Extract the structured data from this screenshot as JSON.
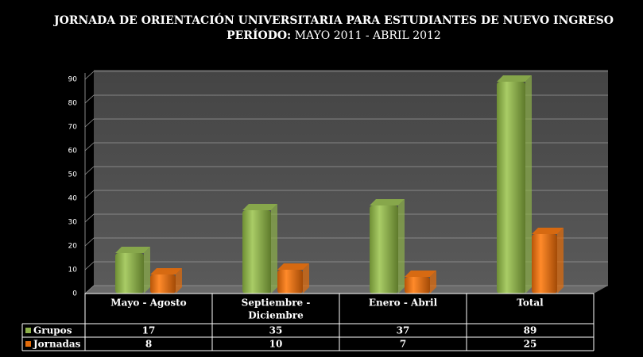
{
  "chart_data": {
    "type": "bar",
    "title": "JORNADA DE ORIENTACIÓN UNIVERSITARIA PARA ESTUDIANTES DE NUEVO INGRESO",
    "subtitle_label": "PERÍODO:",
    "subtitle": "MAYO 2011 - ABRIL 2012",
    "categories": [
      [
        "Mayo - Agosto"
      ],
      [
        "Septiembre -",
        "Diciembre"
      ],
      [
        "Enero - Abril"
      ],
      [
        "Total"
      ]
    ],
    "series": [
      {
        "name": "Grupos",
        "color": "#8db04a",
        "values": [
          17,
          35,
          37,
          89
        ]
      },
      {
        "name": "Jornadas",
        "color": "#e46c0a",
        "values": [
          8,
          10,
          7,
          25
        ]
      }
    ],
    "ylim": [
      0,
      90
    ],
    "yticks": [
      0,
      10,
      20,
      30,
      40,
      50,
      60,
      70,
      80,
      90
    ],
    "grid": true
  }
}
